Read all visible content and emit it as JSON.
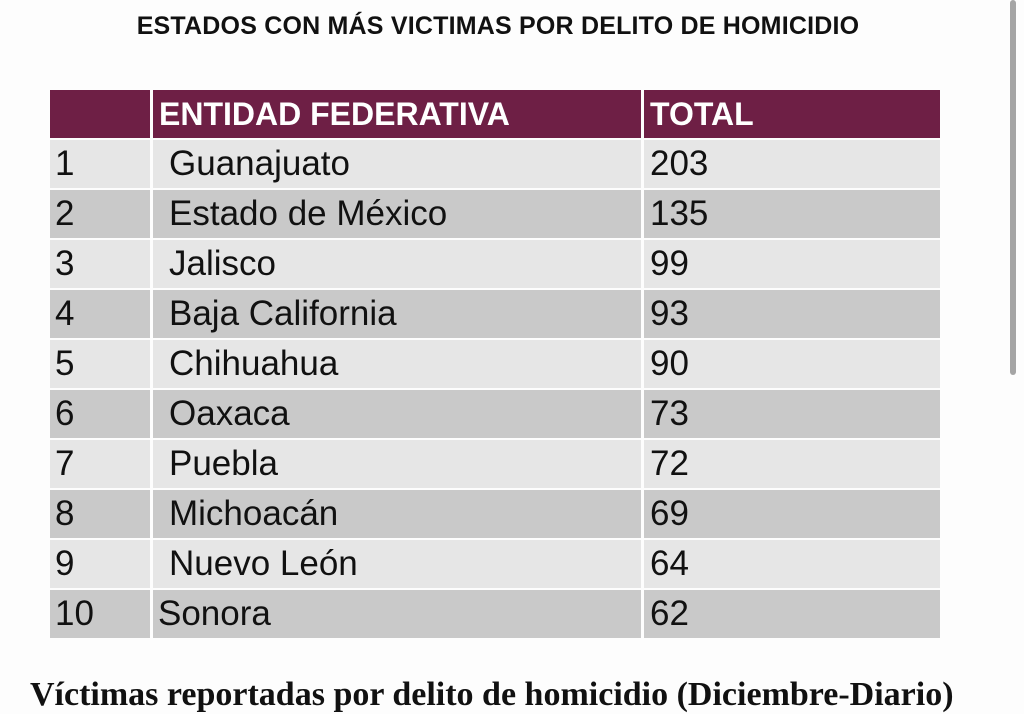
{
  "title": "ESTADOS CON MÁS VICTIMAS POR DELITO DE HOMICIDIO",
  "table": {
    "headers": [
      "",
      "ENTIDAD FEDERATIVA",
      "TOTAL"
    ],
    "rows": [
      {
        "rank": "1",
        "entity": "Guanajuato",
        "total": "203"
      },
      {
        "rank": "2",
        "entity": "Estado de México",
        "total": "135"
      },
      {
        "rank": "3",
        "entity": "Jalisco",
        "total": "99"
      },
      {
        "rank": "4",
        "entity": "Baja California",
        "total": "93"
      },
      {
        "rank": "5",
        "entity": "Chihuahua",
        "total": "90"
      },
      {
        "rank": "6",
        "entity": "Oaxaca",
        "total": "73"
      },
      {
        "rank": "7",
        "entity": "Puebla",
        "total": "72"
      },
      {
        "rank": "8",
        "entity": "Michoacán",
        "total": "69"
      },
      {
        "rank": "9",
        "entity": "Nuevo León",
        "total": "64"
      },
      {
        "rank": "10",
        "entity": "Sonora",
        "total": "62"
      }
    ]
  },
  "colors": {
    "header": "#6e1f45",
    "row_light": "#e6e6e6",
    "row_dark": "#c9c9c9"
  },
  "footer_text": "Víctimas reportadas por delito de homicidio (Diciembre-Diario)"
}
